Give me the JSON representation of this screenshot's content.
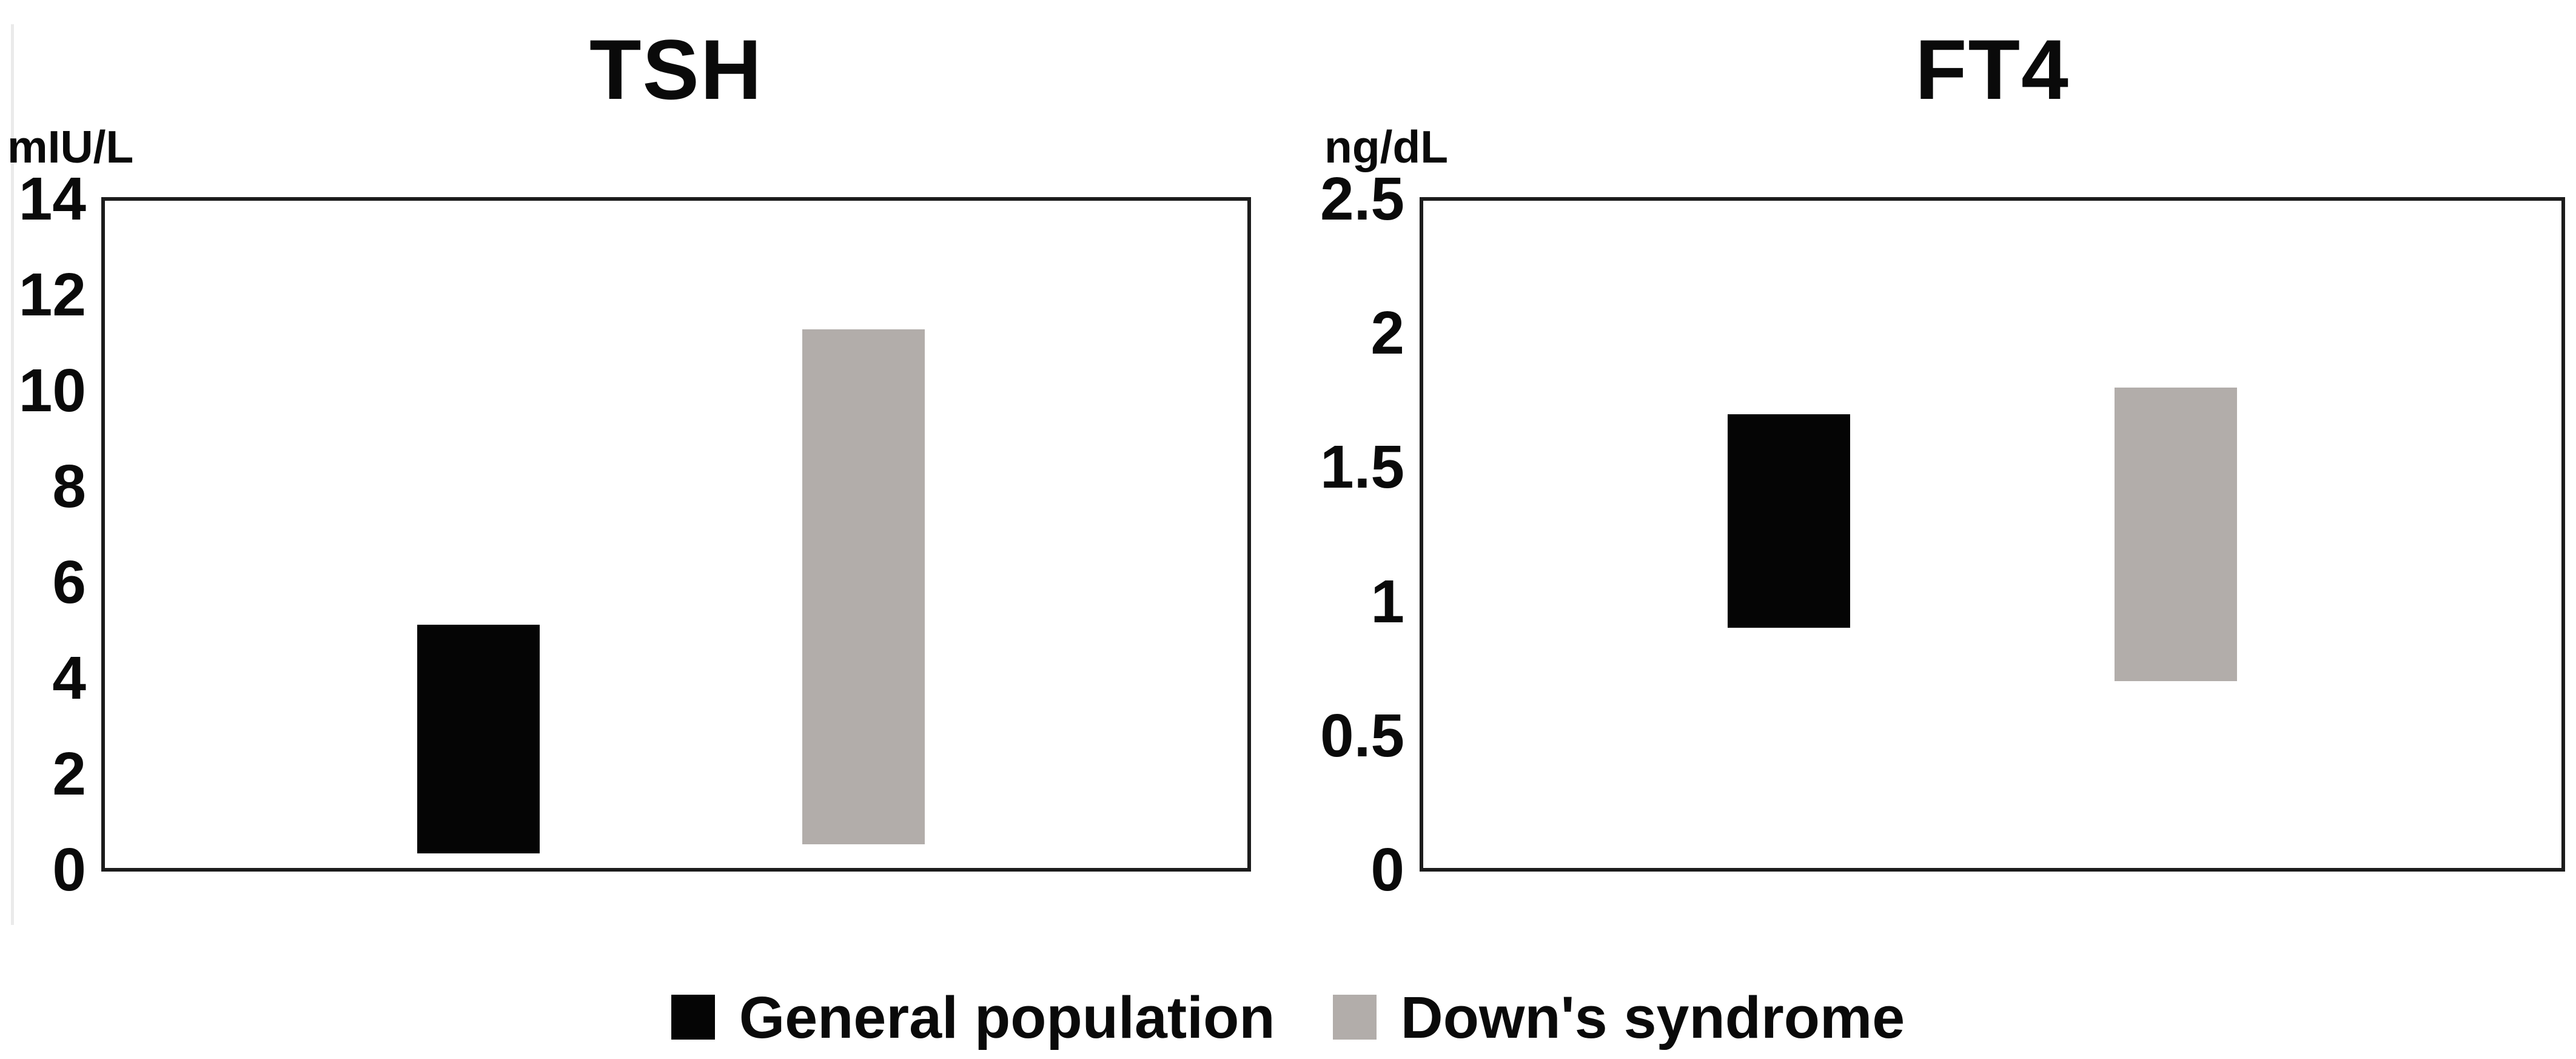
{
  "legend": {
    "items": [
      {
        "label": "General population",
        "color": "#050505"
      },
      {
        "label": "Down's syndrome",
        "color": "#b2adaa"
      }
    ]
  },
  "chart_data": [
    {
      "type": "bar",
      "subtype": "floating-range-bars",
      "title": "TSH",
      "ylabel": "mIU/L",
      "xlabel": "",
      "ylim": [
        0,
        14
      ],
      "yticks": [
        "14",
        "12",
        "10",
        "8",
        "6",
        "4",
        "2",
        "0"
      ],
      "grid": false,
      "legend_position": "bottom",
      "categories": [
        "General population",
        "Down's syndrome"
      ],
      "series": [
        {
          "name": "General population",
          "range_min": 0.3,
          "range_max": 5.1,
          "color": "#050505"
        },
        {
          "name": "Down's syndrome",
          "range_min": 0.5,
          "range_max": 11.3,
          "color": "#b2adaa"
        }
      ]
    },
    {
      "type": "bar",
      "subtype": "floating-range-bars",
      "title": "FT4",
      "ylabel": "ng/dL",
      "xlabel": "",
      "ylim": [
        0,
        2.5
      ],
      "yticks": [
        "2.5",
        "2",
        "1.5",
        "1",
        "0.5",
        "0"
      ],
      "grid": false,
      "legend_position": "bottom",
      "categories": [
        "General population",
        "Down's syndrome"
      ],
      "series": [
        {
          "name": "General population",
          "range_min": 0.9,
          "range_max": 1.7,
          "color": "#050505"
        },
        {
          "name": "Down's syndrome",
          "range_min": 0.7,
          "range_max": 1.8,
          "color": "#b2adaa"
        }
      ]
    }
  ]
}
